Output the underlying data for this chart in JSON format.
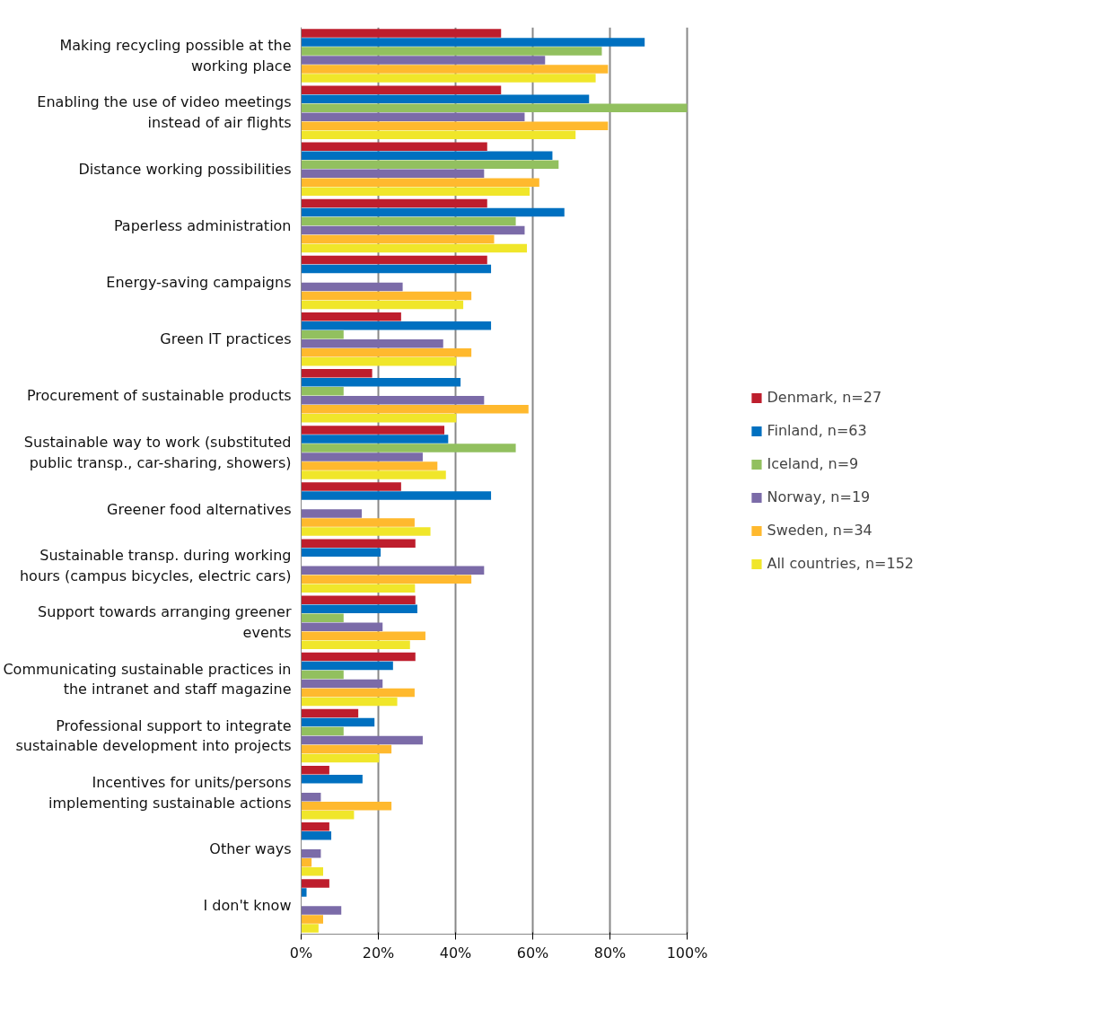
{
  "chart_data": {
    "type": "bar",
    "orientation": "horizontal",
    "categories": [
      "Making recycling possible at the working place",
      "Enabling the use of video meetings instead of air flights",
      "Distance working possibilities",
      "Paperless administration",
      "Energy-saving campaigns",
      "Green IT practices",
      "Procurement of sustainable products",
      "Sustainable way to work (substituted public transp., car-sharing, showers)",
      "Greener food alternatives",
      "Sustainable transp. during working hours (campus bicycles, electric cars)",
      "Support towards arranging greener events",
      "Communicating sustainable practices in the intranet and staff magazine",
      "Professional support to integrate sustainable development into projects",
      "Incentives for units/persons implementing sustainable actions",
      "Other ways",
      "I don't know"
    ],
    "series": [
      {
        "name": "Denmark, n=27",
        "color": "#be1e2d",
        "values": [
          51.8,
          51.8,
          48.2,
          48.2,
          48.2,
          25.9,
          18.4,
          37.1,
          25.9,
          29.6,
          29.6,
          29.6,
          14.8,
          7.3,
          7.3,
          7.3
        ]
      },
      {
        "name": "Finland, n=63",
        "color": "#0070c0",
        "values": [
          89,
          74.6,
          65.1,
          68.2,
          49.2,
          49.2,
          41.3,
          38.1,
          49.2,
          20.6,
          30.1,
          23.8,
          19.0,
          15.9,
          7.8,
          1.4
        ]
      },
      {
        "name": "Iceland, n=9",
        "color": "#92c05f",
        "values": [
          77.9,
          100,
          66.7,
          55.6,
          0,
          11.0,
          11.0,
          55.6,
          0,
          0,
          11.0,
          11.0,
          11.0,
          0,
          0,
          0
        ]
      },
      {
        "name": "Norway, n=19",
        "color": "#7b6ba8",
        "values": [
          63.2,
          57.9,
          47.4,
          57.9,
          26.3,
          36.8,
          47.4,
          31.5,
          15.7,
          47.4,
          21.1,
          21.1,
          31.5,
          5.1,
          5.1,
          10.4
        ]
      },
      {
        "name": "Sweden, n=34",
        "color": "#ffb92e",
        "values": [
          79.5,
          79.5,
          61.7,
          50,
          44.1,
          44.1,
          58.9,
          35.3,
          29.4,
          44.1,
          32.2,
          29.4,
          23.4,
          23.4,
          2.7,
          5.7
        ]
      },
      {
        "name": "All countries, n=152",
        "color": "#f0e62a",
        "values": [
          76.3,
          71.1,
          59.2,
          58.5,
          42.0,
          40.2,
          40.2,
          37.5,
          33.5,
          29.5,
          28.2,
          24.9,
          20.2,
          13.7,
          5.7,
          4.5
        ]
      }
    ],
    "xlim": [
      0,
      100
    ],
    "xticks": [
      {
        "value": 0,
        "label": "0%"
      },
      {
        "value": 20,
        "label": "20%"
      },
      {
        "value": 40,
        "label": "40%"
      },
      {
        "value": 60,
        "label": "60%"
      },
      {
        "value": 80,
        "label": "80%"
      },
      {
        "value": 100,
        "label": "100%"
      }
    ],
    "grid": "x",
    "legend": "right"
  }
}
